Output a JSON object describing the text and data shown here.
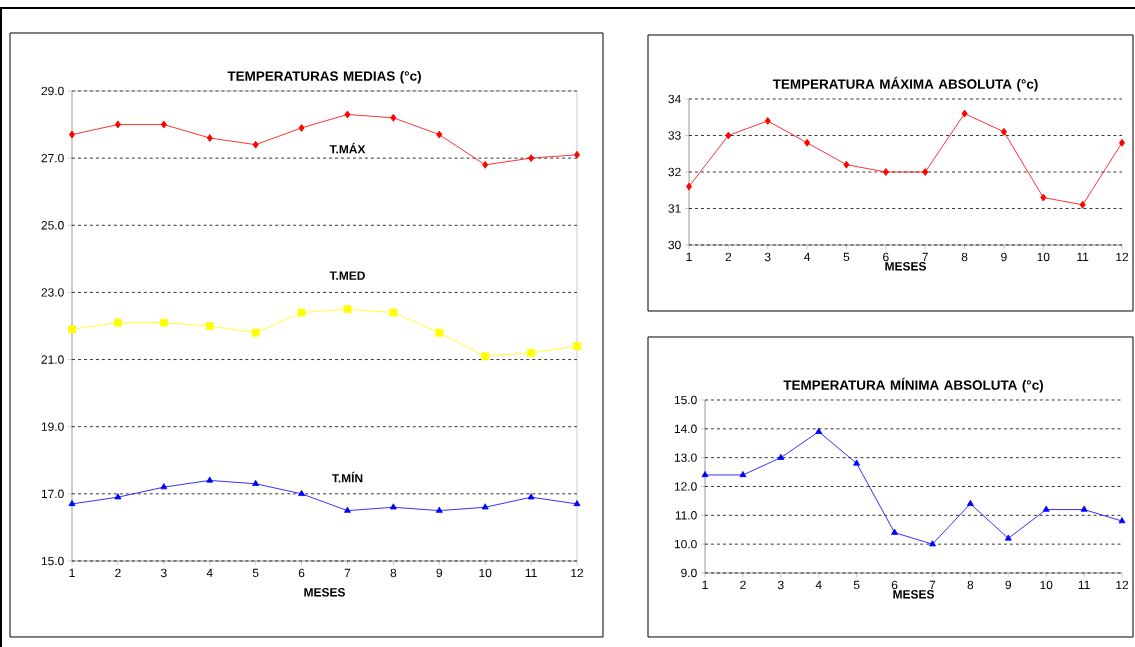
{
  "chart_data": [
    {
      "type": "line",
      "title": "TEMPERATURAS MEDIAS (°c)",
      "xlabel": "MESES",
      "categories": [
        "1",
        "2",
        "3",
        "4",
        "5",
        "6",
        "7",
        "8",
        "9",
        "10",
        "11",
        "12"
      ],
      "series": [
        {
          "name": "T.MÁX",
          "color": "#ff0000",
          "marker": "diamond",
          "values": [
            27.7,
            28.0,
            28.0,
            27.6,
            27.4,
            27.9,
            28.3,
            28.2,
            27.7,
            26.8,
            27.0,
            27.1
          ]
        },
        {
          "name": "T.MED",
          "color": "#ffff00",
          "marker": "square",
          "values": [
            21.9,
            22.1,
            22.1,
            22.0,
            21.8,
            22.4,
            22.5,
            22.4,
            21.8,
            21.1,
            21.2,
            21.4
          ]
        },
        {
          "name": "T.MÍN",
          "color": "#0000ff",
          "marker": "triangle",
          "values": [
            16.7,
            16.9,
            17.2,
            17.4,
            17.3,
            17.0,
            16.5,
            16.6,
            16.5,
            16.6,
            16.9,
            16.7
          ]
        }
      ],
      "ylim": [
        15,
        29
      ],
      "yticks": [
        {
          "value": 15,
          "label": "15.0"
        },
        {
          "value": 17,
          "label": "17.0"
        },
        {
          "value": 19,
          "label": "19.0"
        },
        {
          "value": 21,
          "label": "21.0"
        },
        {
          "value": 23,
          "label": "23.0"
        },
        {
          "value": 25,
          "label": "25.0"
        },
        {
          "value": 27,
          "label": "27.0"
        },
        {
          "value": 29,
          "label": "29.0"
        }
      ],
      "grid": "y",
      "legend": false,
      "line_style": "solid"
    },
    {
      "type": "line",
      "title": "TEMPERATURA MÁXIMA ABSOLUTA (°c)",
      "xlabel": "MESES",
      "categories": [
        "1",
        "2",
        "3",
        "4",
        "5",
        "6",
        "7",
        "8",
        "9",
        "10",
        "11",
        "12"
      ],
      "values": [
        31.6,
        33.0,
        33.4,
        32.8,
        32.2,
        32.0,
        32.0,
        33.6,
        33.1,
        31.3,
        31.1,
        32.8
      ],
      "color": "#ff0000",
      "marker": "diamond",
      "ylim": [
        30,
        34
      ],
      "yticks": [
        30,
        31,
        32,
        33,
        34
      ],
      "grid": "y",
      "legend": false,
      "line_style": "solid"
    },
    {
      "type": "line",
      "title": "TEMPERATURA MÍNIMA ABSOLUTA (°c)",
      "xlabel": "MESES",
      "categories": [
        "1",
        "2",
        "3",
        "4",
        "5",
        "6",
        "7",
        "8",
        "9",
        "10",
        "11",
        "12"
      ],
      "values": [
        12.4,
        12.4,
        13.0,
        13.9,
        12.8,
        10.4,
        10.0,
        11.4,
        10.2,
        11.2,
        11.2,
        10.8
      ],
      "color": "#0000ff",
      "marker": "triangle",
      "ylim": [
        9,
        15
      ],
      "yticks": [
        {
          "value": 9,
          "label": "9.0"
        },
        {
          "value": 10,
          "label": "10.0"
        },
        {
          "value": 11,
          "label": "11.0"
        },
        {
          "value": 12,
          "label": "12.0"
        },
        {
          "value": 13,
          "label": "13.0"
        },
        {
          "value": 14,
          "label": "14.0"
        },
        {
          "value": 15,
          "label": "15.0"
        }
      ],
      "grid": "y",
      "legend": false,
      "line_style": "solid"
    }
  ]
}
